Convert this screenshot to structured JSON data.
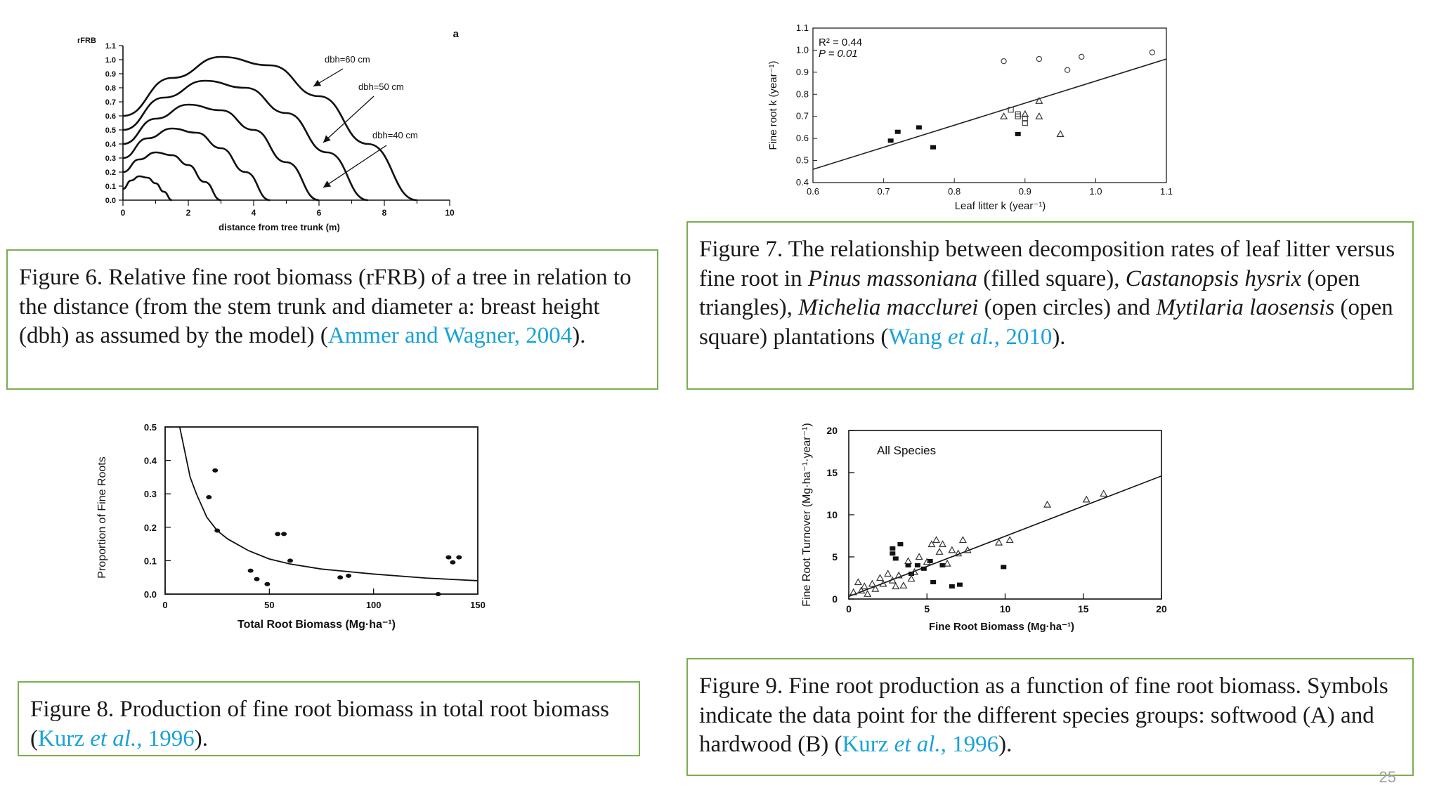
{
  "slide": {
    "page_number": "25"
  },
  "captions": {
    "fig6": {
      "text": "Figure 6. Relative fine root biomass (rFRB) of a tree in relation to the distance (from the stem trunk and diameter a: breast height (dbh) as assumed by the model) (",
      "ref": "Ammer and Wagner, 2004",
      "end": ")."
    },
    "fig7": {
      "p1": "Figure 7. The relationship between decomposition rates of leaf litter versus fine root in ",
      "sp1": "Pinus massoniana",
      "p2": " (filled square), ",
      "sp2": "Castanopsis hysrix",
      "p3": " (open triangles), ",
      "sp3": "Michelia macclurei",
      "p4": " (open circles) and ",
      "sp4": "Mytilaria laosensis",
      "p5": " (open square) plantations (",
      "ref_a": "Wang ",
      "ref_b": "et al.,",
      "ref_c": " 2010",
      "end": ")."
    },
    "fig8": {
      "p1": "Figure 8. Production of fine root biomass in total root biomass (",
      "ref_a": "Kurz ",
      "ref_b": "et al.,",
      "ref_c": " 1996",
      "end": ")."
    },
    "fig9": {
      "p1": "Figure 9. Fine root production as a function of fine root biomass. Symbols indicate the data point for the different species groups: softwood (A) and hardwood (B) (",
      "ref_a": "Kurz ",
      "ref_b": "et al.,",
      "ref_c": " 1996",
      "end": ")."
    }
  },
  "chart_data": [
    {
      "type": "line",
      "panel_label": "a",
      "ylabel": "rFRB",
      "xlabel": "distance from tree trunk (m)",
      "xlim": [
        0,
        10
      ],
      "ylim": [
        0,
        1.1
      ],
      "x_ticks": [
        "0",
        "2",
        "4",
        "6",
        "8",
        "10"
      ],
      "y_ticks": [
        "0.0",
        "0.1",
        "0.2",
        "0.3",
        "0.4",
        "0.5",
        "0.6",
        "0.7",
        "0.8",
        "0.9",
        "1.0",
        "1.1"
      ],
      "annotations": [
        "dbh=60 cm",
        "dbh=50 cm",
        "dbh=40 cm"
      ],
      "series": [
        {
          "x": [
            0,
            0.25,
            0.5,
            0.75,
            1.0,
            1.25,
            1.5
          ],
          "y": [
            0.08,
            0.14,
            0.17,
            0.16,
            0.12,
            0.06,
            0.0
          ]
        },
        {
          "x": [
            0,
            0.5,
            1.0,
            1.5,
            2.0,
            2.5,
            3.0
          ],
          "y": [
            0.2,
            0.29,
            0.34,
            0.32,
            0.25,
            0.13,
            0.0
          ]
        },
        {
          "x": [
            0,
            0.75,
            1.5,
            2.25,
            3.0,
            3.75,
            4.5
          ],
          "y": [
            0.3,
            0.44,
            0.51,
            0.48,
            0.37,
            0.2,
            0.0
          ]
        },
        {
          "x": [
            0,
            1.0,
            2.0,
            3.0,
            4.0,
            5.0,
            6.0
          ],
          "y": [
            0.4,
            0.58,
            0.68,
            0.64,
            0.5,
            0.27,
            0.0
          ]
        },
        {
          "x": [
            0,
            1.25,
            2.5,
            3.75,
            5.0,
            6.25,
            7.5
          ],
          "y": [
            0.5,
            0.73,
            0.85,
            0.8,
            0.62,
            0.34,
            0.0
          ]
        },
        {
          "x": [
            0,
            1.5,
            3.0,
            4.5,
            6.0,
            7.5,
            9.0
          ],
          "y": [
            0.6,
            0.87,
            1.02,
            0.96,
            0.74,
            0.4,
            0.0
          ]
        }
      ]
    },
    {
      "type": "scatter",
      "xlabel": "Leaf litter k (year⁻¹)",
      "ylabel": "Fine root k (year⁻¹)",
      "xlim": [
        0.6,
        1.1
      ],
      "ylim": [
        0.4,
        1.1
      ],
      "x_ticks": [
        "0.6",
        "0.7",
        "0.8",
        "0.9",
        "1.0",
        "1.1"
      ],
      "y_ticks": [
        "0.4",
        "0.5",
        "0.6",
        "0.7",
        "0.8",
        "0.9",
        "1.0",
        "1.1"
      ],
      "stats": {
        "r2": "R² = 0.44",
        "p": "P = 0.01"
      },
      "fit_line": {
        "x": [
          0.6,
          1.1
        ],
        "y": [
          0.46,
          0.96
        ]
      },
      "series": [
        {
          "marker": "filled-square",
          "x": [
            0.71,
            0.72,
            0.75,
            0.77,
            0.89
          ],
          "y": [
            0.59,
            0.63,
            0.65,
            0.56,
            0.62
          ]
        },
        {
          "marker": "open-triangle",
          "x": [
            0.87,
            0.9,
            0.92,
            0.92,
            0.95
          ],
          "y": [
            0.7,
            0.71,
            0.77,
            0.7,
            0.62
          ]
        },
        {
          "marker": "open-circle",
          "x": [
            0.87,
            0.92,
            0.96,
            0.98,
            1.08
          ],
          "y": [
            0.95,
            0.96,
            0.91,
            0.97,
            0.99
          ]
        },
        {
          "marker": "open-square",
          "x": [
            0.88,
            0.89,
            0.89,
            0.9,
            0.9
          ],
          "y": [
            0.73,
            0.71,
            0.7,
            0.67,
            0.69
          ]
        }
      ]
    },
    {
      "type": "scatter",
      "xlabel": "Total Root Biomass (Mg·ha⁻¹)",
      "ylabel": "Proportion of Fine Roots",
      "xlim": [
        0,
        150
      ],
      "ylim": [
        0,
        0.5
      ],
      "x_ticks": [
        "0",
        "50",
        "100",
        "150"
      ],
      "y_ticks": [
        "0.0",
        "0.1",
        "0.2",
        "0.3",
        "0.4",
        "0.5"
      ],
      "fit_curve": {
        "x": [
          7,
          9,
          12,
          15,
          20,
          25,
          30,
          40,
          50,
          60,
          75,
          100,
          125,
          150
        ],
        "y": [
          0.5,
          0.44,
          0.35,
          0.3,
          0.23,
          0.19,
          0.165,
          0.13,
          0.105,
          0.09,
          0.075,
          0.06,
          0.048,
          0.04
        ]
      },
      "points": {
        "x": [
          21,
          24,
          25,
          41,
          44,
          49,
          54,
          57,
          60,
          84,
          88,
          131,
          136,
          138,
          141
        ],
        "y": [
          0.29,
          0.37,
          0.19,
          0.07,
          0.045,
          0.03,
          0.18,
          0.18,
          0.1,
          0.05,
          0.055,
          0.0,
          0.11,
          0.095,
          0.11
        ]
      }
    },
    {
      "type": "scatter",
      "xlabel": "Fine Root Biomass (Mg·ha⁻¹)",
      "ylabel": "Fine Root Turnover (Mg·ha⁻¹·year⁻¹)",
      "annotation": "All Species",
      "xlim": [
        0,
        20
      ],
      "ylim": [
        0,
        20
      ],
      "x_ticks": [
        "0",
        "5",
        "10",
        "15",
        "20"
      ],
      "y_ticks": [
        "0",
        "5",
        "10",
        "15",
        "20"
      ],
      "fit_line": {
        "x": [
          0,
          20
        ],
        "y": [
          0.3,
          14.6
        ]
      },
      "series": [
        {
          "marker": "filled-square",
          "x": [
            2.8,
            2.8,
            3.3,
            3.0,
            3.8,
            4.4,
            4.0,
            4.8,
            5.2,
            5.4,
            6.0,
            6.6,
            7.1,
            9.9
          ],
          "y": [
            5.4,
            6.0,
            6.5,
            4.8,
            4.0,
            4.0,
            3.0,
            3.6,
            4.5,
            2.0,
            4.0,
            1.5,
            1.7,
            3.8
          ]
        },
        {
          "marker": "open-triangle",
          "x": [
            0.3,
            0.6,
            0.8,
            1.0,
            1.2,
            1.5,
            1.7,
            2.0,
            2.2,
            2.5,
            2.8,
            3.0,
            3.2,
            3.5,
            3.8,
            4.0,
            4.2,
            4.5,
            5.0,
            5.3,
            5.6,
            5.8,
            6.0,
            6.3,
            6.6,
            7.0,
            7.3,
            7.6,
            9.6,
            10.3,
            12.7,
            15.2,
            16.3
          ],
          "y": [
            0.8,
            2.0,
            1.0,
            1.5,
            0.6,
            1.8,
            1.2,
            2.5,
            1.8,
            3.0,
            2.2,
            1.5,
            2.8,
            1.6,
            4.5,
            2.4,
            3.2,
            5.0,
            4.4,
            6.5,
            7.0,
            5.6,
            6.5,
            4.2,
            5.8,
            5.4,
            7.0,
            5.8,
            6.7,
            7.0,
            11.2,
            11.8,
            12.5
          ]
        }
      ]
    }
  ]
}
